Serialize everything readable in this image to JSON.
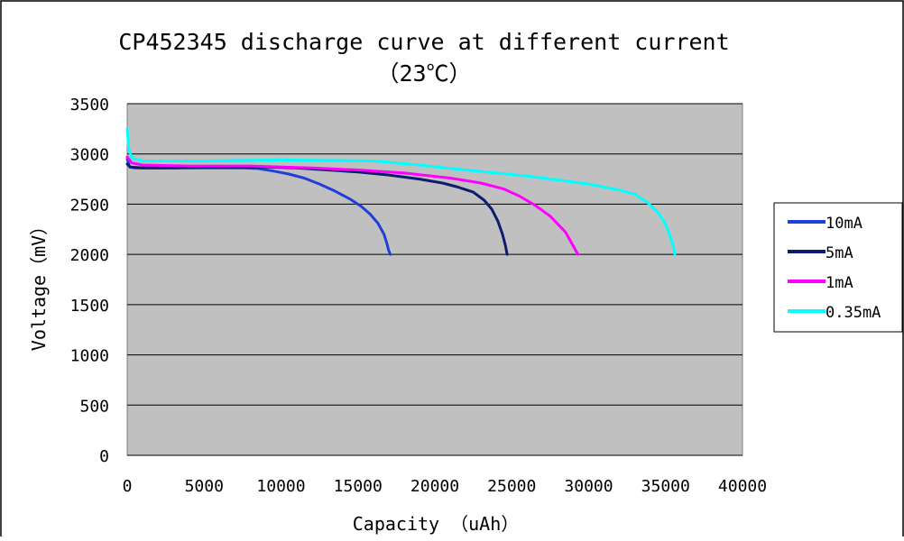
{
  "chart_data": {
    "type": "line",
    "title": "CP452345 discharge curve at different current",
    "subtitle": "（23℃）",
    "xlabel": "Capacity  （uAh）",
    "ylabel": "Voltage（mV）",
    "xlim": [
      0,
      40000
    ],
    "ylim": [
      0,
      3500
    ],
    "x_ticks": [
      "0",
      "5000",
      "10000",
      "15000",
      "20000",
      "25000",
      "30000",
      "35000",
      "40000"
    ],
    "y_ticks": [
      "0",
      "500",
      "1000",
      "1500",
      "2000",
      "2500",
      "3000",
      "3500"
    ],
    "grid": true,
    "legend_position": "right",
    "plot_background": "#c0c0c0",
    "series": [
      {
        "name": "10mA",
        "color": "#1f3fd6",
        "points": [
          [
            0,
            2950
          ],
          [
            150,
            2870
          ],
          [
            500,
            2860
          ],
          [
            2000,
            2860
          ],
          [
            4000,
            2860
          ],
          [
            6000,
            2860
          ],
          [
            7500,
            2860
          ],
          [
            8500,
            2855
          ],
          [
            9500,
            2830
          ],
          [
            10500,
            2800
          ],
          [
            11500,
            2760
          ],
          [
            12500,
            2700
          ],
          [
            13500,
            2630
          ],
          [
            14500,
            2550
          ],
          [
            15200,
            2480
          ],
          [
            15800,
            2400
          ],
          [
            16300,
            2310
          ],
          [
            16700,
            2200
          ],
          [
            16900,
            2100
          ],
          [
            17000,
            2040
          ],
          [
            17100,
            2000
          ]
        ]
      },
      {
        "name": "5mA",
        "color": "#0c1c6e",
        "points": [
          [
            0,
            2900
          ],
          [
            200,
            2870
          ],
          [
            1000,
            2860
          ],
          [
            3000,
            2860
          ],
          [
            5000,
            2870
          ],
          [
            7000,
            2870
          ],
          [
            9000,
            2870
          ],
          [
            11000,
            2860
          ],
          [
            13000,
            2840
          ],
          [
            15000,
            2820
          ],
          [
            17000,
            2790
          ],
          [
            19000,
            2750
          ],
          [
            20500,
            2710
          ],
          [
            21500,
            2670
          ],
          [
            22500,
            2620
          ],
          [
            23200,
            2540
          ],
          [
            23700,
            2450
          ],
          [
            24100,
            2330
          ],
          [
            24400,
            2200
          ],
          [
            24600,
            2080
          ],
          [
            24700,
            2000
          ]
        ]
      },
      {
        "name": "1mA",
        "color": "#ff00ff",
        "points": [
          [
            0,
            2970
          ],
          [
            300,
            2910
          ],
          [
            1000,
            2890
          ],
          [
            4000,
            2880
          ],
          [
            8000,
            2880
          ],
          [
            12000,
            2860
          ],
          [
            15000,
            2840
          ],
          [
            18000,
            2810
          ],
          [
            21000,
            2760
          ],
          [
            23000,
            2710
          ],
          [
            24500,
            2650
          ],
          [
            25500,
            2580
          ],
          [
            26500,
            2490
          ],
          [
            27500,
            2380
          ],
          [
            28500,
            2220
          ],
          [
            29300,
            2000
          ]
        ]
      },
      {
        "name": "0.35mA",
        "color": "#00ffff",
        "points": [
          [
            0,
            3250
          ],
          [
            100,
            3050
          ],
          [
            300,
            2960
          ],
          [
            1000,
            2930
          ],
          [
            5000,
            2930
          ],
          [
            10000,
            2940
          ],
          [
            16000,
            2930
          ],
          [
            19000,
            2890
          ],
          [
            22000,
            2840
          ],
          [
            26000,
            2780
          ],
          [
            30000,
            2700
          ],
          [
            32000,
            2640
          ],
          [
            33000,
            2600
          ],
          [
            33800,
            2520
          ],
          [
            34500,
            2420
          ],
          [
            35000,
            2300
          ],
          [
            35300,
            2180
          ],
          [
            35500,
            2080
          ],
          [
            35600,
            2000
          ]
        ]
      }
    ]
  }
}
